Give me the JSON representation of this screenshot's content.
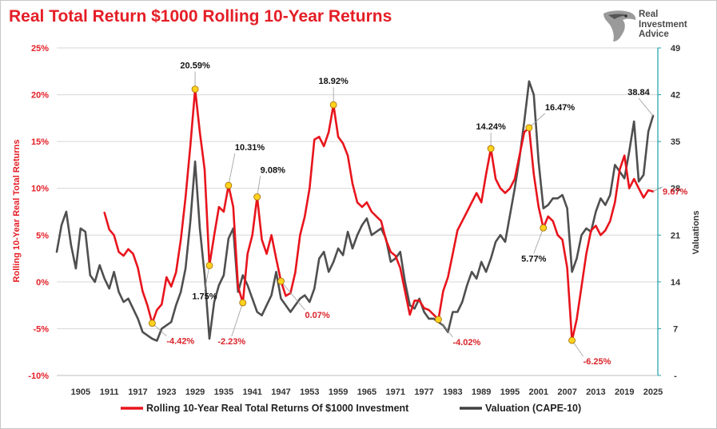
{
  "title": "Real Total Return $1000 Rolling 10-Year Returns",
  "logo": {
    "line1": "Real",
    "line2": "Investment",
    "line3": "Advice",
    "icon": "eagle-head-icon"
  },
  "colors": {
    "returns": "#e8141c",
    "cape": "#404040",
    "title": "#e41e26",
    "marker": "#ffd21e",
    "right_axis": "#1aa0a8"
  },
  "chart_data": {
    "type": "line",
    "title": "Real Total Return $1000 Rolling 10-Year Returns",
    "xlabel": "",
    "ylabel_left": "Rolling 10-Year Real Total Returns",
    "ylabel_right": "Valuations",
    "x_ticks": [
      "1905",
      "1911",
      "1917",
      "1923",
      "1929",
      "1935",
      "1941",
      "1947",
      "1953",
      "1959",
      "1965",
      "1971",
      "1977",
      "1983",
      "1989",
      "1995",
      "2001",
      "2007",
      "2013",
      "2019",
      "2025"
    ],
    "y_left_ticks": [
      "25%",
      "20%",
      "15%",
      "10%",
      "5%",
      "0%",
      "-5%",
      "-10%"
    ],
    "y_right_ticks": [
      "49",
      "42",
      "35",
      "28",
      "21",
      "14",
      "7",
      "-"
    ],
    "y_left_range": [
      -10,
      25
    ],
    "y_right_range": [
      0,
      49
    ],
    "x_range": [
      1900,
      2026
    ],
    "legend_position": "bottom",
    "series": [
      {
        "name": "Rolling 10-Year Real Total Returns Of $1000 Investment",
        "axis": "left",
        "points": [
          [
            1910,
            7.4
          ],
          [
            1911,
            5.6
          ],
          [
            1912,
            5.0
          ],
          [
            1913,
            3.2
          ],
          [
            1914,
            2.8
          ],
          [
            1915,
            3.5
          ],
          [
            1916,
            3.0
          ],
          [
            1917,
            1.5
          ],
          [
            1918,
            -1.0
          ],
          [
            1919,
            -2.5
          ],
          [
            1920,
            -4.42
          ],
          [
            1921,
            -3.0
          ],
          [
            1922,
            -2.4
          ],
          [
            1923,
            0.5
          ],
          [
            1924,
            -0.5
          ],
          [
            1925,
            1.0
          ],
          [
            1926,
            4.5
          ],
          [
            1927,
            9.0
          ],
          [
            1928,
            14.5
          ],
          [
            1929,
            20.59
          ],
          [
            1930,
            16.0
          ],
          [
            1931,
            12.0
          ],
          [
            1932,
            1.75
          ],
          [
            1933,
            5.0
          ],
          [
            1934,
            8.0
          ],
          [
            1935,
            7.5
          ],
          [
            1936,
            10.31
          ],
          [
            1937,
            8.0
          ],
          [
            1938,
            -0.5
          ],
          [
            1939,
            -2.23
          ],
          [
            1940,
            3.0
          ],
          [
            1941,
            5.0
          ],
          [
            1942,
            9.08
          ],
          [
            1943,
            4.5
          ],
          [
            1944,
            3.0
          ],
          [
            1945,
            5.0
          ],
          [
            1946,
            2.5
          ],
          [
            1947,
            0.07
          ],
          [
            1948,
            -1.5
          ],
          [
            1949,
            -1.2
          ],
          [
            1950,
            1.0
          ],
          [
            1951,
            5.0
          ],
          [
            1952,
            7.0
          ],
          [
            1953,
            10.0
          ],
          [
            1954,
            15.2
          ],
          [
            1955,
            15.5
          ],
          [
            1956,
            14.5
          ],
          [
            1957,
            16.0
          ],
          [
            1958,
            18.92
          ],
          [
            1959,
            15.5
          ],
          [
            1960,
            14.8
          ],
          [
            1961,
            13.5
          ],
          [
            1962,
            10.5
          ],
          [
            1963,
            8.5
          ],
          [
            1964,
            8.0
          ],
          [
            1965,
            8.5
          ],
          [
            1966,
            7.5
          ],
          [
            1967,
            7.0
          ],
          [
            1968,
            6.5
          ],
          [
            1969,
            4.5
          ],
          [
            1970,
            3.2
          ],
          [
            1971,
            2.8
          ],
          [
            1972,
            1.5
          ],
          [
            1973,
            -1.0
          ],
          [
            1974,
            -3.5
          ],
          [
            1975,
            -2.0
          ],
          [
            1976,
            -2.0
          ],
          [
            1977,
            -2.8
          ],
          [
            1978,
            -3.0
          ],
          [
            1979,
            -3.5
          ],
          [
            1980,
            -4.02
          ],
          [
            1981,
            -1.0
          ],
          [
            1982,
            0.5
          ],
          [
            1983,
            3.0
          ],
          [
            1984,
            5.5
          ],
          [
            1985,
            6.5
          ],
          [
            1986,
            7.5
          ],
          [
            1987,
            8.5
          ],
          [
            1988,
            9.5
          ],
          [
            1989,
            8.5
          ],
          [
            1990,
            11.5
          ],
          [
            1991,
            14.24
          ],
          [
            1992,
            11.0
          ],
          [
            1993,
            10.0
          ],
          [
            1994,
            9.5
          ],
          [
            1995,
            10.0
          ],
          [
            1996,
            11.0
          ],
          [
            1997,
            13.5
          ],
          [
            1998,
            16.0
          ],
          [
            1999,
            16.47
          ],
          [
            2000,
            11.5
          ],
          [
            2001,
            8.0
          ],
          [
            2002,
            5.77
          ],
          [
            2003,
            7.0
          ],
          [
            2004,
            6.5
          ],
          [
            2005,
            5.0
          ],
          [
            2006,
            4.5
          ],
          [
            2007,
            1.5
          ],
          [
            2008,
            -6.25
          ],
          [
            2009,
            -4.0
          ],
          [
            2010,
            -0.5
          ],
          [
            2011,
            3.0
          ],
          [
            2012,
            5.5
          ],
          [
            2013,
            6.0
          ],
          [
            2014,
            5.0
          ],
          [
            2015,
            5.5
          ],
          [
            2016,
            6.5
          ],
          [
            2017,
            8.5
          ],
          [
            2018,
            12.0
          ],
          [
            2019,
            13.5
          ],
          [
            2020,
            10.0
          ],
          [
            2021,
            11.0
          ],
          [
            2022,
            10.0
          ],
          [
            2023,
            9.0
          ],
          [
            2024,
            9.8
          ],
          [
            2025,
            9.67
          ]
        ]
      },
      {
        "name": "Valuation (CAPE-10)",
        "axis": "right",
        "points": [
          [
            1900,
            18.5
          ],
          [
            1901,
            22.5
          ],
          [
            1902,
            24.5
          ],
          [
            1903,
            19.5
          ],
          [
            1904,
            16.0
          ],
          [
            1905,
            22.0
          ],
          [
            1906,
            21.5
          ],
          [
            1907,
            15.0
          ],
          [
            1908,
            14.0
          ],
          [
            1909,
            16.5
          ],
          [
            1910,
            14.5
          ],
          [
            1911,
            13.0
          ],
          [
            1912,
            15.5
          ],
          [
            1913,
            12.5
          ],
          [
            1914,
            11.0
          ],
          [
            1915,
            11.5
          ],
          [
            1916,
            10.0
          ],
          [
            1917,
            8.5
          ],
          [
            1918,
            6.5
          ],
          [
            1919,
            6.0
          ],
          [
            1920,
            5.5
          ],
          [
            1921,
            5.2
          ],
          [
            1922,
            7.0
          ],
          [
            1923,
            7.5
          ],
          [
            1924,
            8.0
          ],
          [
            1925,
            10.5
          ],
          [
            1926,
            12.5
          ],
          [
            1927,
            16.0
          ],
          [
            1928,
            23.0
          ],
          [
            1929,
            32.0
          ],
          [
            1930,
            22.0
          ],
          [
            1931,
            15.0
          ],
          [
            1932,
            5.5
          ],
          [
            1933,
            11.0
          ],
          [
            1934,
            13.5
          ],
          [
            1935,
            15.0
          ],
          [
            1936,
            20.5
          ],
          [
            1937,
            22.0
          ],
          [
            1938,
            12.5
          ],
          [
            1939,
            15.0
          ],
          [
            1940,
            13.5
          ],
          [
            1941,
            11.5
          ],
          [
            1942,
            9.5
          ],
          [
            1943,
            9.0
          ],
          [
            1944,
            10.5
          ],
          [
            1945,
            12.0
          ],
          [
            1946,
            15.5
          ],
          [
            1947,
            11.5
          ],
          [
            1948,
            10.5
          ],
          [
            1949,
            9.5
          ],
          [
            1950,
            10.5
          ],
          [
            1951,
            11.5
          ],
          [
            1952,
            12.0
          ],
          [
            1953,
            11.0
          ],
          [
            1954,
            13.0
          ],
          [
            1955,
            17.5
          ],
          [
            1956,
            18.5
          ],
          [
            1957,
            15.5
          ],
          [
            1958,
            17.0
          ],
          [
            1959,
            19.0
          ],
          [
            1960,
            18.0
          ],
          [
            1961,
            21.5
          ],
          [
            1962,
            19.0
          ],
          [
            1963,
            21.0
          ],
          [
            1964,
            22.5
          ],
          [
            1965,
            23.5
          ],
          [
            1966,
            21.0
          ],
          [
            1967,
            21.5
          ],
          [
            1968,
            22.0
          ],
          [
            1969,
            20.5
          ],
          [
            1970,
            17.0
          ],
          [
            1971,
            17.5
          ],
          [
            1972,
            18.5
          ],
          [
            1973,
            14.0
          ],
          [
            1974,
            10.5
          ],
          [
            1975,
            10.0
          ],
          [
            1976,
            11.5
          ],
          [
            1977,
            9.5
          ],
          [
            1978,
            8.5
          ],
          [
            1979,
            8.5
          ],
          [
            1980,
            8.0
          ],
          [
            1981,
            7.5
          ],
          [
            1982,
            6.5
          ],
          [
            1983,
            9.5
          ],
          [
            1984,
            9.5
          ],
          [
            1985,
            11.0
          ],
          [
            1986,
            13.5
          ],
          [
            1987,
            15.5
          ],
          [
            1988,
            14.5
          ],
          [
            1989,
            17.0
          ],
          [
            1990,
            15.5
          ],
          [
            1991,
            17.5
          ],
          [
            1992,
            20.0
          ],
          [
            1993,
            21.0
          ],
          [
            1994,
            20.0
          ],
          [
            1995,
            24.0
          ],
          [
            1996,
            28.0
          ],
          [
            1997,
            32.5
          ],
          [
            1998,
            38.0
          ],
          [
            1999,
            44.0
          ],
          [
            2000,
            42.0
          ],
          [
            2001,
            32.0
          ],
          [
            2002,
            25.0
          ],
          [
            2003,
            25.5
          ],
          [
            2004,
            26.5
          ],
          [
            2005,
            26.5
          ],
          [
            2006,
            27.0
          ],
          [
            2007,
            25.0
          ],
          [
            2008,
            15.5
          ],
          [
            2009,
            17.5
          ],
          [
            2010,
            21.0
          ],
          [
            2011,
            22.0
          ],
          [
            2012,
            21.5
          ],
          [
            2013,
            24.5
          ],
          [
            2014,
            26.5
          ],
          [
            2015,
            25.5
          ],
          [
            2016,
            27.0
          ],
          [
            2017,
            31.5
          ],
          [
            2018,
            30.5
          ],
          [
            2019,
            29.5
          ],
          [
            2020,
            33.5
          ],
          [
            2021,
            38.0
          ],
          [
            2022,
            29.0
          ],
          [
            2023,
            30.0
          ],
          [
            2024,
            36.5
          ],
          [
            2025,
            38.84
          ]
        ]
      }
    ],
    "annotations": [
      {
        "text": "20.59%",
        "year": 1929,
        "value": 20.59,
        "axis": "left",
        "color": "#111111",
        "marker": true
      },
      {
        "text": "10.31%",
        "year": 1936,
        "value": 10.31,
        "axis": "left",
        "color": "#111111",
        "marker": true
      },
      {
        "text": "9.08%",
        "year": 1942,
        "value": 9.08,
        "axis": "left",
        "color": "#111111",
        "marker": true
      },
      {
        "text": "18.92%",
        "year": 1958,
        "value": 18.92,
        "axis": "left",
        "color": "#111111",
        "marker": true
      },
      {
        "text": "14.24%",
        "year": 1991,
        "value": 14.24,
        "axis": "left",
        "color": "#111111",
        "marker": true
      },
      {
        "text": "16.47%",
        "year": 1999,
        "value": 16.47,
        "axis": "left",
        "color": "#111111",
        "marker": true
      },
      {
        "text": "1.75%",
        "year": 1932,
        "value": 1.75,
        "axis": "left",
        "color": "#111111",
        "marker": true
      },
      {
        "text": "5.77%",
        "year": 2002,
        "value": 5.77,
        "axis": "left",
        "color": "#111111",
        "marker": true
      },
      {
        "text": "-4.42%",
        "year": 1920,
        "value": -4.42,
        "axis": "left",
        "color": "#d9232a",
        "marker": true
      },
      {
        "text": "-2.23%",
        "year": 1939,
        "value": -2.23,
        "axis": "left",
        "color": "#d9232a",
        "marker": true
      },
      {
        "text": "0.07%",
        "year": 1947,
        "value": 0.07,
        "axis": "left",
        "color": "#d9232a",
        "marker": true
      },
      {
        "text": "-4.02%",
        "year": 1980,
        "value": -4.02,
        "axis": "left",
        "color": "#d9232a",
        "marker": true
      },
      {
        "text": "-6.25%",
        "year": 2008,
        "value": -6.25,
        "axis": "left",
        "color": "#d9232a",
        "marker": true
      },
      {
        "text": "9.67%",
        "year": 2025,
        "value": 9.67,
        "axis": "left",
        "color": "#d9232a",
        "marker": false
      },
      {
        "text": "38.84",
        "year": 2025,
        "value": 38.84,
        "axis": "right",
        "color": "#111111",
        "marker": false
      }
    ]
  }
}
